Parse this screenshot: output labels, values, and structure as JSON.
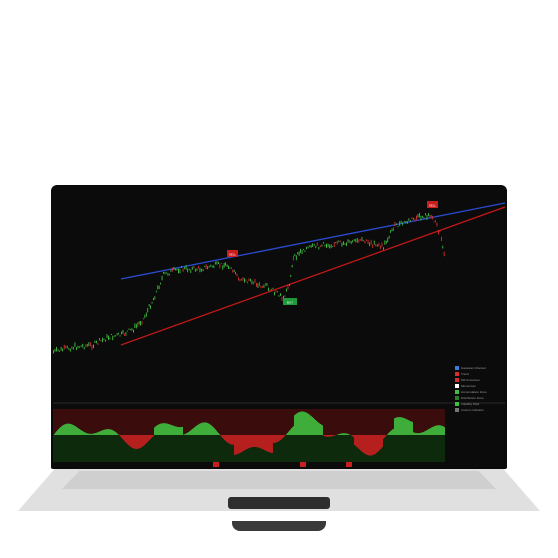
{
  "colors": {
    "background": "#0b0b0b",
    "upper_trendline": "#2a4bd0",
    "lower_trendline": "#c01818",
    "bull": "#3fbf3f",
    "bear": "#d23030",
    "signal_red": "#c81e1e",
    "signal_green": "#1f9a3a"
  },
  "signals": {
    "sell_1": "SELL",
    "buy_1": "BUY",
    "sell_2": "SELL"
  },
  "legend": [
    {
      "label": "Gaussian Channel",
      "color": "#3a7de0"
    },
    {
      "label": "Trend",
      "color": "#d23030"
    },
    {
      "label": "MA Crossover",
      "color": "#d23030"
    },
    {
      "label": "Momentum",
      "color": "#ffffff"
    },
    {
      "label": "Accumulation Zone",
      "color": "#3fbf3f"
    },
    {
      "label": "Distribution Zone",
      "color": "#2a7d2a"
    },
    {
      "label": "Volatility Filter",
      "color": "#3fbf3f"
    },
    {
      "label": "Custom Indicator",
      "color": "#777777"
    }
  ]
}
